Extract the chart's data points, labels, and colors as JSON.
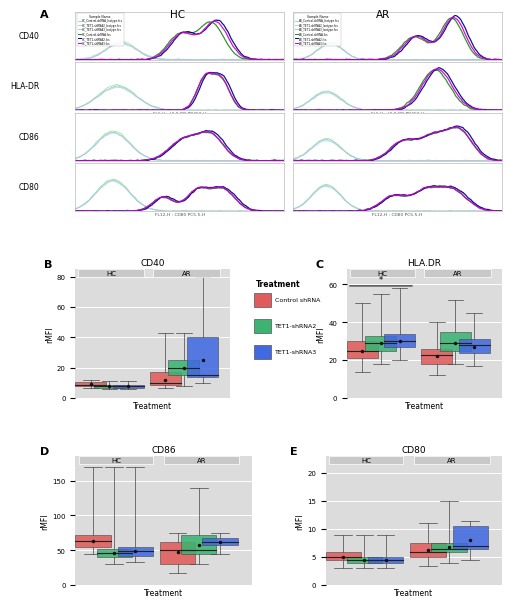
{
  "flow_labels_left": [
    "CD40",
    "HLA-DR",
    "CD86",
    "CD80"
  ],
  "flow_xlabels": [
    "FL3-H : CD40 APC-H",
    "FL6-H : HLA-DR PB450-H",
    "FL10-H : CD86 PE-H",
    "FL12-H : CD80 PC5.5-H"
  ],
  "legend_entries_flow": [
    "HC_Control-shRNA_Isotype.fcs",
    "HC_TET1-shRNA2_Isotype.fcs",
    "HC_TET1-shRNA3_Isotype.fcs",
    "HC_Control-shRNA.fcs",
    "HC_TET1-shRNA2.fcs",
    "HC_TET1-shRNA3.fcs"
  ],
  "legend_entries_flow_ar": [
    "AR_Control-shRNA_Isotype.fcs",
    "AR_TET1-shRNA2_Isotype.fcs",
    "AR_TET1-shRNA3_Isotype.fcs",
    "AR_Control-shRNA.fcs",
    "AR_TET1-shRNA2.fcs",
    "AR_TET1-shRNA3.fcs"
  ],
  "iso_colors": [
    "#90EE90",
    "#ADD8E6",
    "#B0C4DE"
  ],
  "real_colors": [
    "#228B22",
    "#00008B",
    "#CC00CC"
  ],
  "box_colors": [
    "#E05C5C",
    "#3CB371",
    "#4169E1"
  ],
  "box_labels": [
    "Control shRNA",
    "TET1-shRNA2",
    "TET1-shRNA3"
  ],
  "ylabel_box": "rMFI",
  "xlabel_box": "Treatment",
  "bg_gray": "#DCDCDC",
  "facet_header_color": "#C8C8C8",
  "cd40_hc": {
    "ctrl": {
      "q1": 8.0,
      "med": 9.0,
      "q3": 10.5,
      "min": 7.0,
      "max": 12.0,
      "mean": 9.2
    },
    "sh2": {
      "q1": 7.0,
      "med": 8.0,
      "q3": 9.0,
      "min": 6.0,
      "max": 11.0,
      "mean": 8.0
    },
    "sh3": {
      "q1": 7.0,
      "med": 8.0,
      "q3": 9.0,
      "min": 6.0,
      "max": 11.0,
      "mean": 8.1
    }
  },
  "cd40_ar": {
    "ctrl": {
      "q1": 9.0,
      "med": 10.0,
      "q3": 17.0,
      "min": 7.0,
      "max": 43.0,
      "mean": 12.0
    },
    "sh2": {
      "q1": 15.0,
      "med": 20.0,
      "q3": 25.0,
      "min": 8.0,
      "max": 43.0,
      "mean": 20.0
    },
    "sh3": {
      "q1": 14.0,
      "med": 15.0,
      "q3": 40.0,
      "min": 10.0,
      "max": 80.0,
      "mean": 25.0
    }
  },
  "hladr_hc": {
    "ctrl": {
      "q1": 21.0,
      "med": 25.0,
      "q3": 30.0,
      "min": 14.0,
      "max": 50.0,
      "mean": 25.0
    },
    "sh2": {
      "q1": 25.0,
      "med": 29.0,
      "q3": 33.0,
      "min": 18.0,
      "max": 55.0,
      "mean": 29.0
    },
    "sh3": {
      "q1": 27.0,
      "med": 30.0,
      "q3": 34.0,
      "min": 20.0,
      "max": 58.0,
      "mean": 30.0
    }
  },
  "hladr_ar": {
    "ctrl": {
      "q1": 18.0,
      "med": 23.0,
      "q3": 26.0,
      "min": 12.0,
      "max": 40.0,
      "mean": 22.0
    },
    "sh2": {
      "q1": 25.0,
      "med": 29.0,
      "q3": 35.0,
      "min": 18.0,
      "max": 52.0,
      "mean": 29.0
    },
    "sh3": {
      "q1": 24.0,
      "med": 28.0,
      "q3": 31.0,
      "min": 17.0,
      "max": 45.0,
      "mean": 27.0
    }
  },
  "cd86_hc": {
    "ctrl": {
      "q1": 55.0,
      "med": 63.0,
      "q3": 72.0,
      "min": 45.0,
      "max": 170.0,
      "mean": 63.0
    },
    "sh2": {
      "q1": 40.0,
      "med": 46.0,
      "q3": 52.0,
      "min": 30.0,
      "max": 170.0,
      "mean": 46.0
    },
    "sh3": {
      "q1": 42.0,
      "med": 49.0,
      "q3": 55.0,
      "min": 33.0,
      "max": 170.0,
      "mean": 49.0
    }
  },
  "cd86_ar": {
    "ctrl": {
      "q1": 30.0,
      "med": 50.0,
      "q3": 62.0,
      "min": 18.0,
      "max": 75.0,
      "mean": 48.0
    },
    "sh2": {
      "q1": 45.0,
      "med": 50.0,
      "q3": 72.0,
      "min": 30.0,
      "max": 140.0,
      "mean": 58.0
    },
    "sh3": {
      "q1": 57.0,
      "med": 62.0,
      "q3": 68.0,
      "min": 45.0,
      "max": 75.0,
      "mean": 62.0
    }
  },
  "cd80_hc": {
    "ctrl": {
      "q1": 4.5,
      "med": 5.0,
      "q3": 6.0,
      "min": 3.0,
      "max": 9.0,
      "mean": 5.0
    },
    "sh2": {
      "q1": 4.0,
      "med": 4.5,
      "q3": 5.0,
      "min": 3.0,
      "max": 9.0,
      "mean": 4.5
    },
    "sh3": {
      "q1": 4.0,
      "med": 4.5,
      "q3": 5.0,
      "min": 3.0,
      "max": 9.0,
      "mean": 4.5
    }
  },
  "cd80_ar": {
    "ctrl": {
      "q1": 5.0,
      "med": 6.0,
      "q3": 7.5,
      "min": 3.5,
      "max": 11.0,
      "mean": 6.2
    },
    "sh2": {
      "q1": 6.0,
      "med": 6.5,
      "q3": 7.5,
      "min": 4.0,
      "max": 15.0,
      "mean": 6.8
    },
    "sh3": {
      "q1": 6.5,
      "med": 7.0,
      "q3": 10.5,
      "min": 4.5,
      "max": 11.5,
      "mean": 8.0
    }
  }
}
